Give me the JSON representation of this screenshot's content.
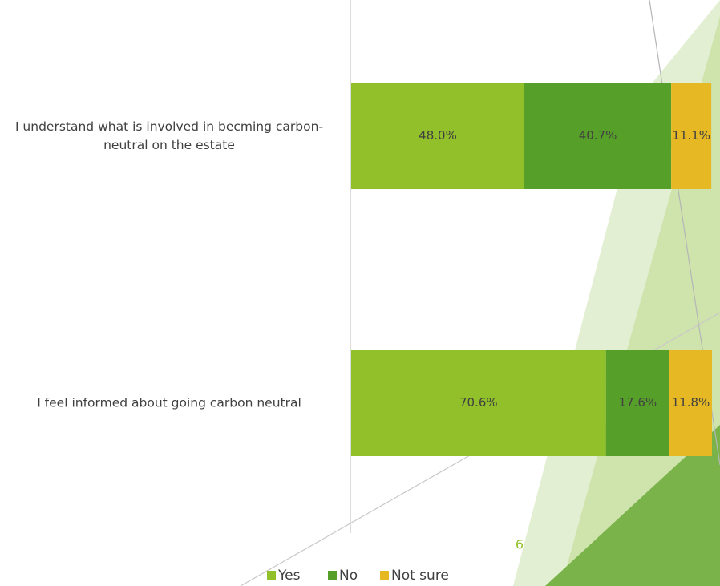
{
  "page_number": "6",
  "chart_data": {
    "type": "bar",
    "orientation": "horizontal",
    "stacked": true,
    "categories": [
      "I understand what is involved in becming carbon-neutral on the estate",
      "I feel informed about going carbon neutral"
    ],
    "xlim": [
      0,
      100
    ],
    "legend": "bottom",
    "series": [
      {
        "name": "Yes",
        "color": "#92c02a",
        "values": [
          48.0,
          70.6
        ],
        "value_labels": [
          "48.0%",
          "70.6%"
        ]
      },
      {
        "name": "No",
        "color": "#56a02a",
        "values": [
          40.7,
          17.6
        ],
        "value_labels": [
          "40.7%",
          "17.6%"
        ]
      },
      {
        "name": "Not sure",
        "color": "#e6b924",
        "values": [
          11.1,
          11.8
        ],
        "value_labels": [
          "11.1%",
          "11.8%"
        ]
      }
    ]
  }
}
